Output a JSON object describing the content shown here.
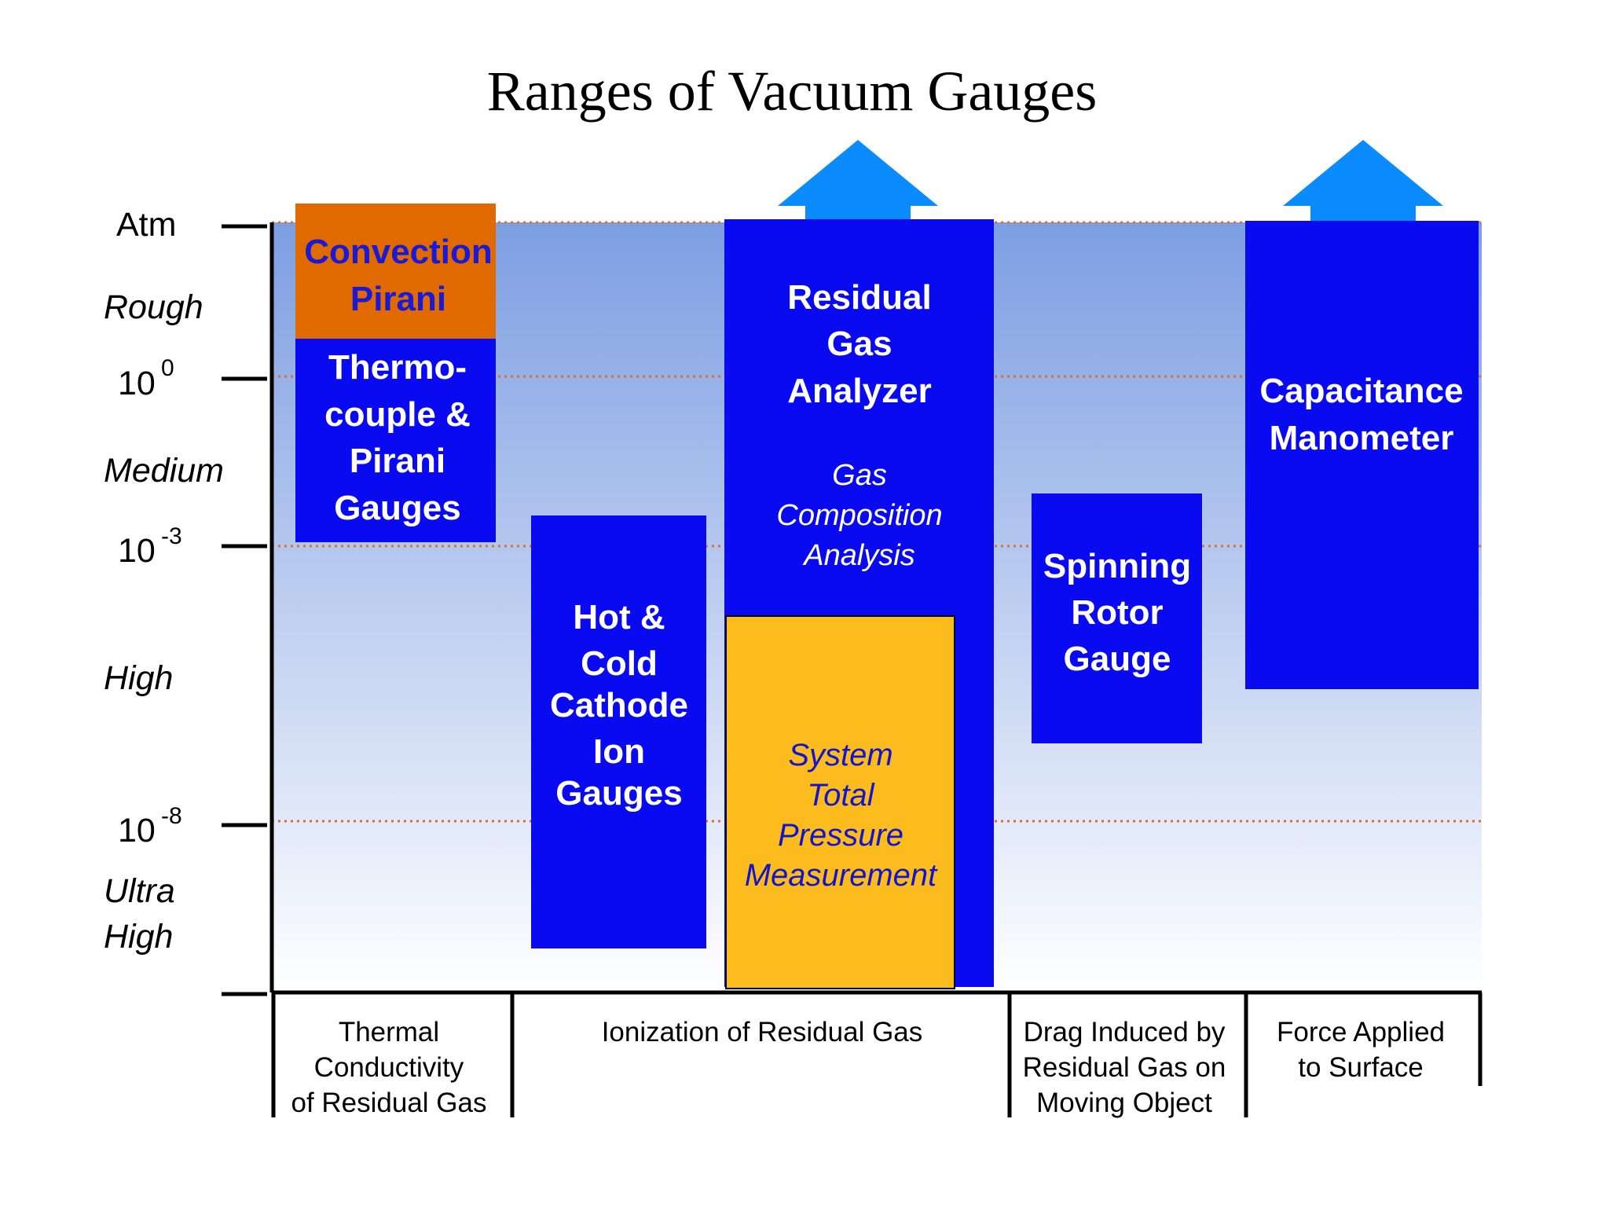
{
  "title": "Ranges of Vacuum Gauges",
  "axis": {
    "atm": "Atm",
    "p0": {
      "base": "10",
      "exp": "0"
    },
    "p3": {
      "base": "10",
      "exp": "-3"
    },
    "p8": {
      "base": "10",
      "exp": "-8"
    },
    "regions": {
      "rough": "Rough",
      "medium": "Medium",
      "high": "High",
      "ultra_1": "Ultra",
      "ultra_2": "High"
    }
  },
  "gauges": {
    "convection": [
      "Convection",
      "Pirani"
    ],
    "thermocouple": [
      "Thermo-",
      "couple &",
      "Pirani",
      "Gauges"
    ],
    "ion": [
      "Hot &",
      "Cold",
      "Cathode",
      "Ion",
      "Gauges"
    ],
    "rga": [
      "Residual",
      "Gas",
      "Analyzer"
    ],
    "rga_sub": [
      "Gas",
      "Composition",
      "Analysis"
    ],
    "system": [
      "System",
      "Total",
      "Pressure",
      "Measurement"
    ],
    "spinning": [
      "Spinning",
      "Rotor",
      "Gauge"
    ],
    "capacitance": [
      "Capacitance",
      "Manometer"
    ]
  },
  "categories": {
    "thermal": [
      "Thermal",
      "Conductivity",
      "of Residual Gas"
    ],
    "ionization": [
      "Ionization of Residual Gas"
    ],
    "drag": [
      "Drag Induced by",
      "Residual Gas on",
      "Moving Object"
    ],
    "force": [
      "Force Applied",
      "to Surface"
    ]
  },
  "colors": {
    "gauge_blue": "#0a0af0",
    "convection_orange": "#e06a00",
    "system_yellow": "#fdbc1e",
    "arrow_blue": "#0a8cff",
    "grid_dotted": "#e07030",
    "gradient_top": "#7d9ee2",
    "gradient_bottom": "#ffffff"
  }
}
